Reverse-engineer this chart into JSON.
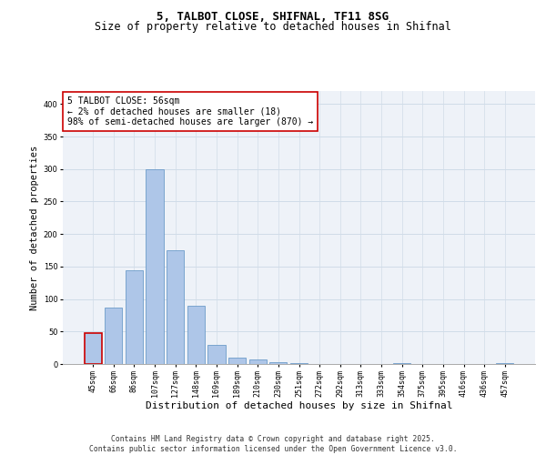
{
  "title1": "5, TALBOT CLOSE, SHIFNAL, TF11 8SG",
  "title2": "Size of property relative to detached houses in Shifnal",
  "xlabel": "Distribution of detached houses by size in Shifnal",
  "ylabel": "Number of detached properties",
  "bar_labels": [
    "45sqm",
    "66sqm",
    "86sqm",
    "107sqm",
    "127sqm",
    "148sqm",
    "169sqm",
    "189sqm",
    "210sqm",
    "230sqm",
    "251sqm",
    "272sqm",
    "292sqm",
    "313sqm",
    "333sqm",
    "354sqm",
    "375sqm",
    "395sqm",
    "416sqm",
    "436sqm",
    "457sqm"
  ],
  "bar_heights": [
    48,
    87,
    144,
    299,
    175,
    90,
    30,
    10,
    7,
    3,
    1,
    0,
    0,
    0,
    0,
    2,
    0,
    0,
    0,
    0,
    2
  ],
  "bar_color": "#aec6e8",
  "bar_edge_color": "#5a8fc2",
  "highlight_bar_index": 0,
  "highlight_color": "#cc0000",
  "ylim": [
    0,
    420
  ],
  "yticks": [
    0,
    50,
    100,
    150,
    200,
    250,
    300,
    350,
    400
  ],
  "grid_color": "#d0dce8",
  "bg_color": "#eef2f8",
  "annotation_text": "5 TALBOT CLOSE: 56sqm\n← 2% of detached houses are smaller (18)\n98% of semi-detached houses are larger (870) →",
  "footer_text": "Contains HM Land Registry data © Crown copyright and database right 2025.\nContains public sector information licensed under the Open Government Licence v3.0.",
  "title1_fontsize": 9,
  "title2_fontsize": 8.5,
  "xlabel_fontsize": 8,
  "ylabel_fontsize": 7.5,
  "tick_fontsize": 6,
  "annotation_fontsize": 7,
  "footer_fontsize": 5.8
}
